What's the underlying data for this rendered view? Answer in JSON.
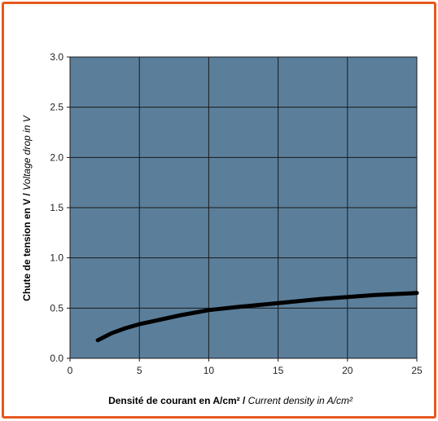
{
  "chart_data": {
    "type": "line",
    "title": "",
    "xlabel": {
      "fr": "Densité de courant en A/cm²",
      "sep": " / ",
      "en": "Current density in A/cm²"
    },
    "ylabel": {
      "fr": "Chute de tension en V",
      "sep": " / ",
      "en": "Voltage drop in V"
    },
    "xlim": [
      0,
      25
    ],
    "ylim": [
      0,
      3.0
    ],
    "x_ticks": [
      "0",
      "5",
      "10",
      "15",
      "20",
      "25"
    ],
    "y_ticks": [
      "0.0",
      "0.5",
      "1.0",
      "1.5",
      "2.0",
      "2.5",
      "3.0"
    ],
    "grid": true,
    "legend": "none",
    "series": [
      {
        "x": [
          2,
          3,
          4,
          5,
          6,
          8,
          10,
          12,
          15,
          18,
          20,
          22,
          25
        ],
        "values": [
          0.18,
          0.25,
          0.3,
          0.34,
          0.37,
          0.43,
          0.48,
          0.51,
          0.55,
          0.59,
          0.61,
          0.63,
          0.65
        ]
      }
    ]
  },
  "colors": {
    "plot_background": "#5b7f9b",
    "gridline": "#1a1a1a",
    "line": "#000000",
    "frame_border": "#e8581f"
  }
}
